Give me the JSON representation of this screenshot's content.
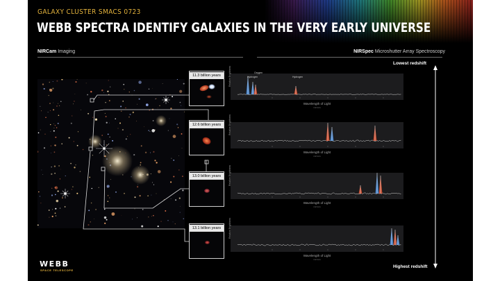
{
  "header": {
    "kicker": "GALAXY CLUSTER SMACS 0723",
    "title": "WEBB SPECTRA IDENTIFY GALAXIES IN THE VERY EARLY UNIVERSE"
  },
  "left_panel": {
    "instrument": "NIRCam",
    "mode": "Imaging"
  },
  "right_panel": {
    "instrument": "NIRSpec",
    "mode": "Microshutter Array Spectroscopy",
    "lowest_label": "Lowest redshift",
    "highest_label": "Highest redshift"
  },
  "cutouts": [
    {
      "age": "11.3 billion years"
    },
    {
      "age": "12.6 billion years"
    },
    {
      "age": "13.0 billion years"
    },
    {
      "age": "13.1 billion years"
    }
  ],
  "spectrum_axis": {
    "ylabel": "Relative Brightness",
    "xlabel": "Wavelength of Light",
    "xunit": "microns",
    "tick_labels": [
      "1",
      "2",
      "3",
      "4",
      "5"
    ]
  },
  "spectra": [
    {
      "lines": [
        "Oxygen",
        "Hydrogen",
        "Hydrogen"
      ]
    },
    {
      "lines": []
    },
    {
      "lines": []
    },
    {
      "lines": []
    }
  ],
  "colors": {
    "background": "#000000",
    "accent": "#e3b23c",
    "hydrogen": "#4a8fe0",
    "oxygen": "#e0502e"
  },
  "logo": {
    "name": "WEBB",
    "sub": "SPACE TELESCOPE"
  }
}
